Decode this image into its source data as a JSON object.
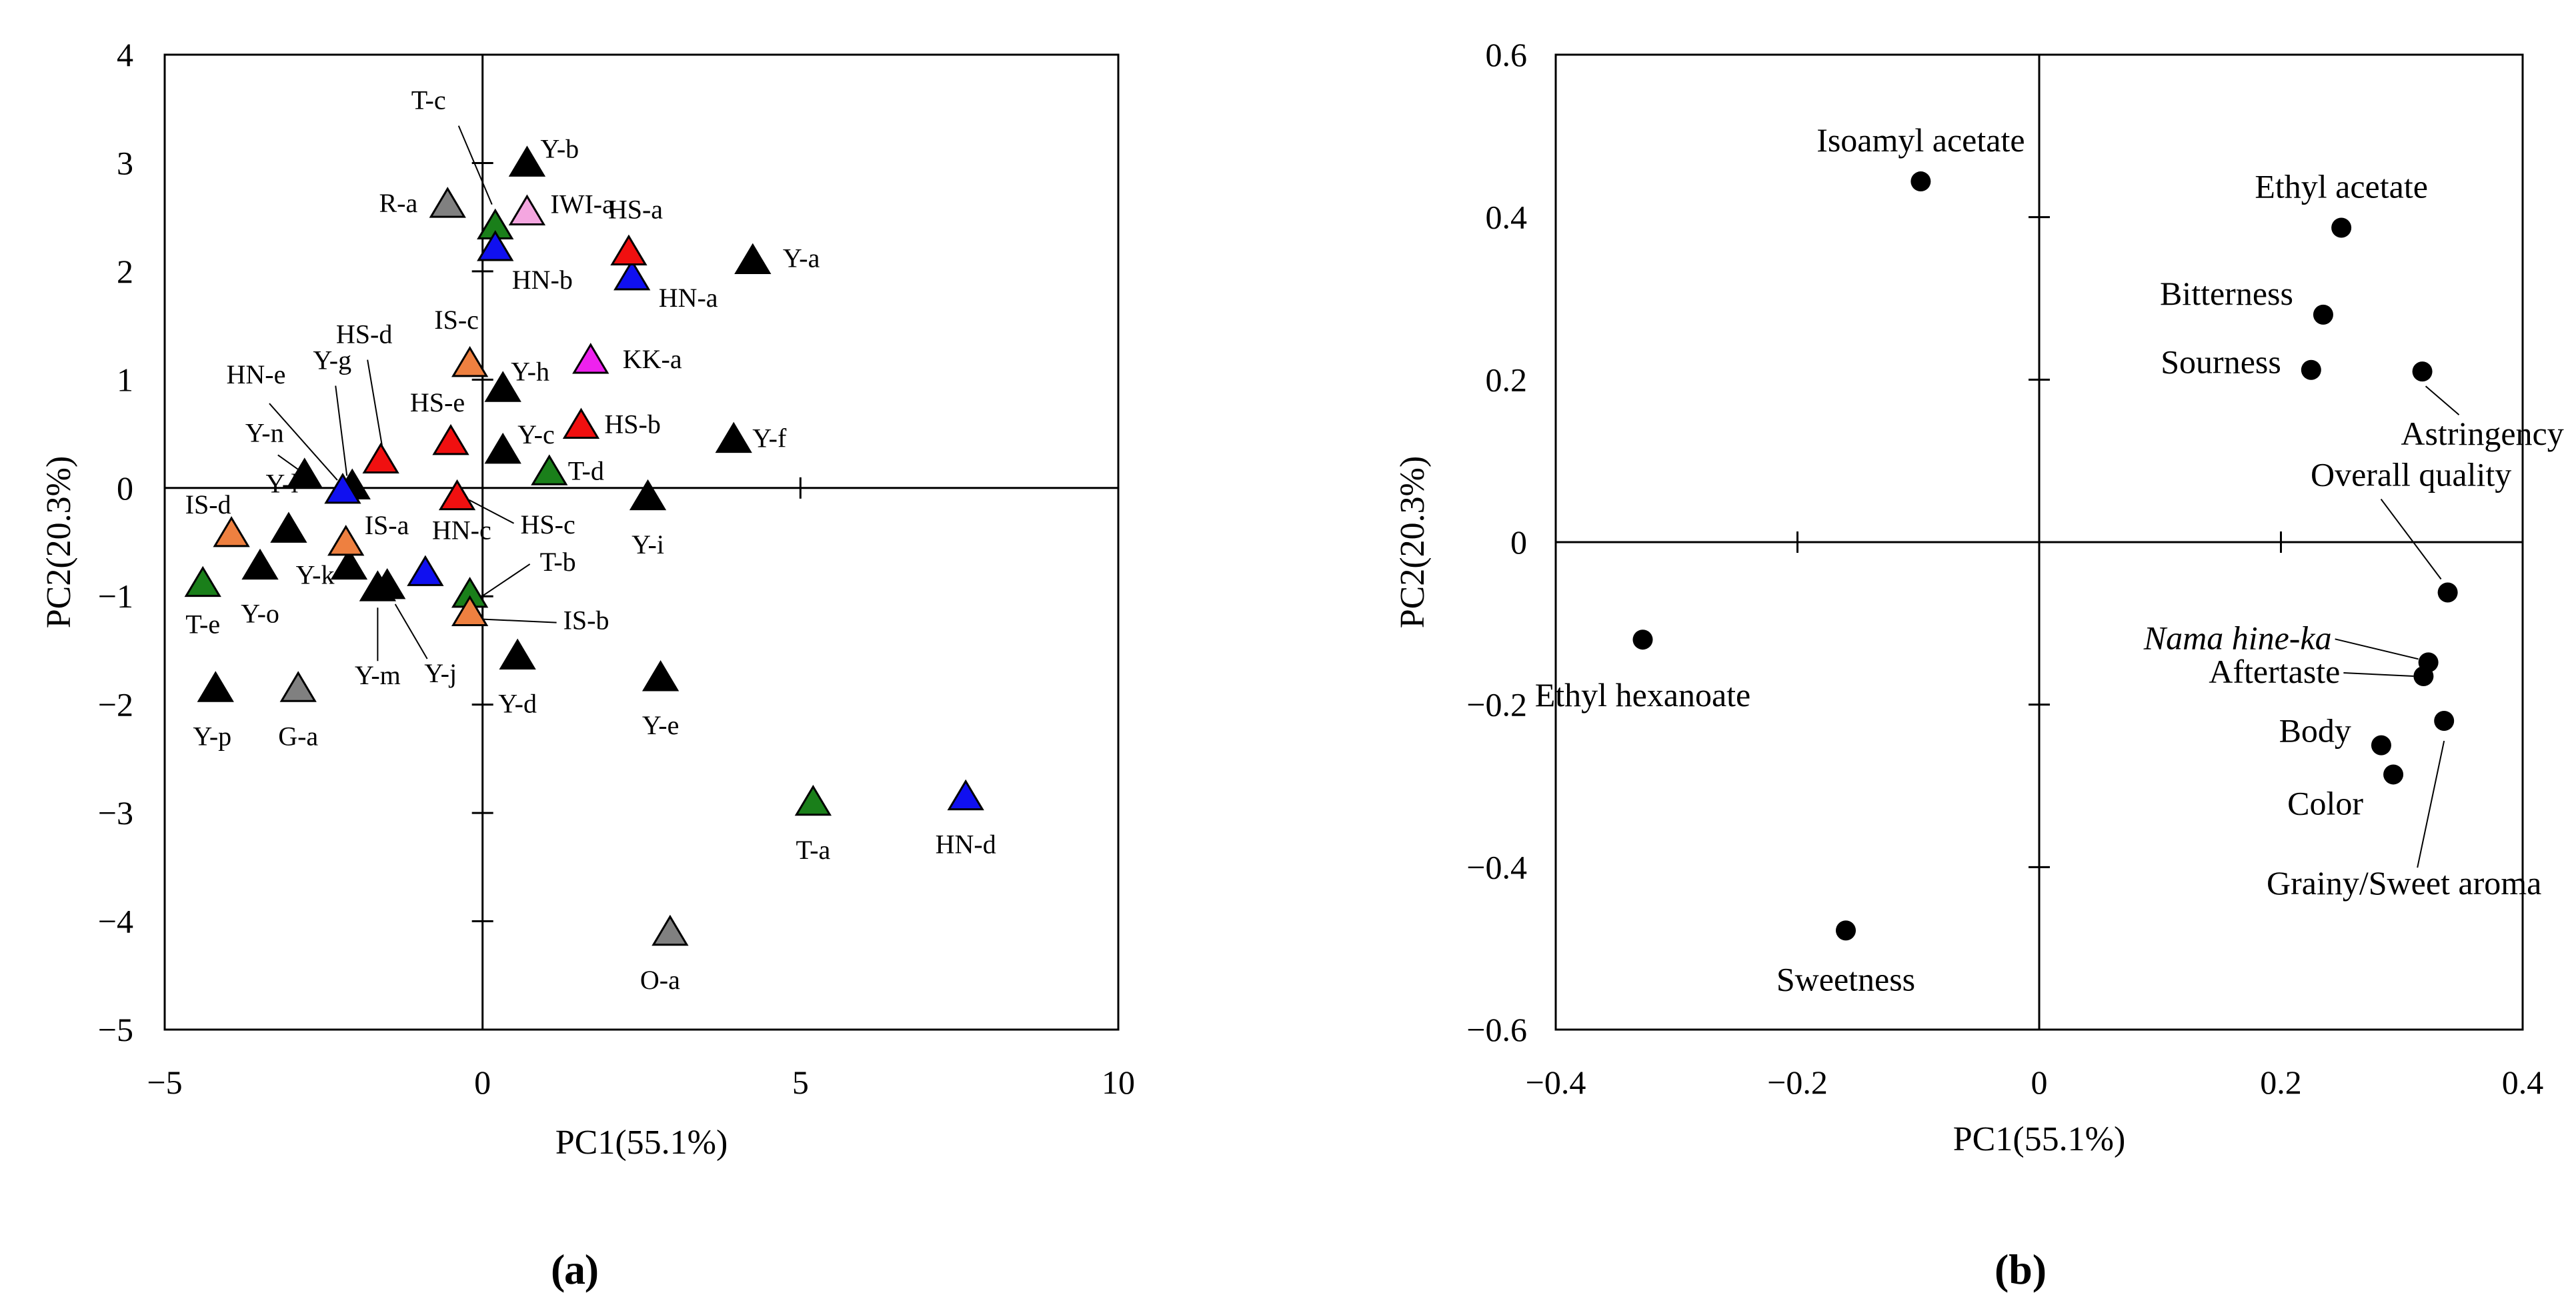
{
  "chart_data": [
    {
      "type": "scatter",
      "panel_label": "(a)",
      "panel_letter": "a",
      "title": "",
      "xlabel": "PC1(55.1%)",
      "ylabel": "PC2(20.3%)",
      "xlim": [
        -5,
        10
      ],
      "ylim": [
        -5,
        4
      ],
      "xticks": [
        "−5",
        "0",
        "5",
        "10"
      ],
      "yticks": [
        "4",
        "3",
        "2",
        "1",
        "0",
        "−1",
        "−2",
        "−3",
        "−4",
        "−5"
      ],
      "marker": "triangle",
      "colors": {
        "black": "#000000",
        "gray": "#808080",
        "green": "#1a7f1a",
        "blue": "#1010f0",
        "red": "#f01010",
        "orange": "#ee8040",
        "pink": "#f4a6e0",
        "magenta": "#ee22ee"
      },
      "points": [
        {
          "label": "Y-a",
          "x": 4.25,
          "y": 2.1,
          "color": "black"
        },
        {
          "label": "Y-b",
          "x": 0.7,
          "y": 3.0,
          "color": "black"
        },
        {
          "label": "Y-c",
          "x": 0.32,
          "y": 0.35,
          "color": "black"
        },
        {
          "label": "Y-d",
          "x": 0.55,
          "y": -1.55,
          "color": "black"
        },
        {
          "label": "Y-e",
          "x": 2.8,
          "y": -1.75,
          "color": "black"
        },
        {
          "label": "Y-f",
          "x": 3.95,
          "y": 0.45,
          "color": "black"
        },
        {
          "label": "Y-g",
          "x": -2.05,
          "y": 0.02,
          "color": "black"
        },
        {
          "label": "Y-h",
          "x": 0.32,
          "y": 0.92,
          "color": "black"
        },
        {
          "label": "Y-i",
          "x": 2.6,
          "y": -0.08,
          "color": "black"
        },
        {
          "label": "Y-j",
          "x": -1.5,
          "y": -0.9,
          "color": "black"
        },
        {
          "label": "Y-k",
          "x": -2.1,
          "y": -0.72,
          "color": "black"
        },
        {
          "label": "Y-l",
          "x": -3.05,
          "y": -0.38,
          "color": "black"
        },
        {
          "label": "Y-m",
          "x": -1.65,
          "y": -0.92,
          "color": "black"
        },
        {
          "label": "Y-n",
          "x": -2.8,
          "y": 0.12,
          "color": "black"
        },
        {
          "label": "Y-o",
          "x": -3.5,
          "y": -0.72,
          "color": "black"
        },
        {
          "label": "Y-p",
          "x": -4.2,
          "y": -1.85,
          "color": "black"
        },
        {
          "label": "R-a",
          "x": -0.55,
          "y": 2.62,
          "color": "gray"
        },
        {
          "label": "G-a",
          "x": -2.9,
          "y": -1.85,
          "color": "gray"
        },
        {
          "label": "O-a",
          "x": 2.95,
          "y": -4.1,
          "color": "gray"
        },
        {
          "label": "T-a",
          "x": 5.2,
          "y": -2.9,
          "color": "green"
        },
        {
          "label": "T-b",
          "x": -0.2,
          "y": -0.98,
          "color": "green"
        },
        {
          "label": "T-c",
          "x": 0.2,
          "y": 2.42,
          "color": "green"
        },
        {
          "label": "T-d",
          "x": 1.05,
          "y": 0.15,
          "color": "green"
        },
        {
          "label": "T-e",
          "x": -4.4,
          "y": -0.88,
          "color": "green"
        },
        {
          "label": "HN-a",
          "x": 2.35,
          "y": 1.95,
          "color": "blue"
        },
        {
          "label": "HN-b",
          "x": 0.2,
          "y": 2.22,
          "color": "blue"
        },
        {
          "label": "HN-c",
          "x": -0.9,
          "y": -0.78,
          "color": "blue"
        },
        {
          "label": "HN-d",
          "x": 7.6,
          "y": -2.85,
          "color": "blue"
        },
        {
          "label": "HN-e",
          "x": -2.2,
          "y": -0.02,
          "color": "blue"
        },
        {
          "label": "HS-a",
          "x": 2.3,
          "y": 2.18,
          "color": "red"
        },
        {
          "label": "HS-b",
          "x": 1.55,
          "y": 0.58,
          "color": "red"
        },
        {
          "label": "HS-c",
          "x": -0.4,
          "y": -0.08,
          "color": "red"
        },
        {
          "label": "HS-d",
          "x": -1.6,
          "y": 0.26,
          "color": "red"
        },
        {
          "label": "HS-e",
          "x": -0.5,
          "y": 0.43,
          "color": "red"
        },
        {
          "label": "IS-a",
          "x": -2.15,
          "y": -0.5,
          "color": "orange"
        },
        {
          "label": "IS-b",
          "x": -0.2,
          "y": -1.15,
          "color": "orange"
        },
        {
          "label": "IS-c",
          "x": -0.2,
          "y": 1.15,
          "color": "orange"
        },
        {
          "label": "IS-d",
          "x": -3.95,
          "y": -0.42,
          "color": "orange"
        },
        {
          "label": "IWI-a",
          "x": 0.7,
          "y": 2.55,
          "color": "pink"
        },
        {
          "label": "KK-a",
          "x": 1.7,
          "y": 1.18,
          "color": "magenta"
        }
      ]
    },
    {
      "type": "scatter",
      "panel_label": "(b)",
      "panel_letter": "b",
      "title": "",
      "xlabel": "PC1(55.1%)",
      "ylabel": "PC2(20.3%)",
      "xlim": [
        -0.4,
        0.4
      ],
      "ylim": [
        -0.6,
        0.6
      ],
      "xticks": [
        "−0.4",
        "−0.2",
        "0",
        "0.2",
        "0.4"
      ],
      "yticks": [
        "0.6",
        "0.4",
        "0.2",
        "0",
        "−0.2",
        "−0.4",
        "−0.6"
      ],
      "marker": "circle",
      "points": [
        {
          "label": "Isoamyl acetate",
          "italic": false,
          "x": -0.098,
          "y": 0.444
        },
        {
          "label": "Ethyl acetate",
          "italic": false,
          "x": 0.25,
          "y": 0.387
        },
        {
          "label": "Bitterness",
          "italic": false,
          "x": 0.235,
          "y": 0.28
        },
        {
          "label": "Sourness",
          "italic": false,
          "x": 0.225,
          "y": 0.212
        },
        {
          "label": "Astringency",
          "italic": false,
          "x": 0.317,
          "y": 0.21
        },
        {
          "label": "Overall quality",
          "italic": false,
          "x": 0.338,
          "y": -0.062
        },
        {
          "label": "Nama hine-ka",
          "italic": true,
          "x": 0.322,
          "y": -0.148
        },
        {
          "label": "Aftertaste",
          "italic": false,
          "x": 0.318,
          "y": -0.165
        },
        {
          "label": "Body",
          "italic": false,
          "x": 0.283,
          "y": -0.25
        },
        {
          "label": "Color",
          "italic": false,
          "x": 0.293,
          "y": -0.286
        },
        {
          "label": "Grainy/Sweet aroma",
          "italic": false,
          "x": 0.335,
          "y": -0.22
        },
        {
          "label": "Ethyl hexanoate",
          "italic": false,
          "x": -0.328,
          "y": -0.12
        },
        {
          "label": "Sweetness",
          "italic": false,
          "x": -0.16,
          "y": -0.478
        }
      ]
    }
  ]
}
